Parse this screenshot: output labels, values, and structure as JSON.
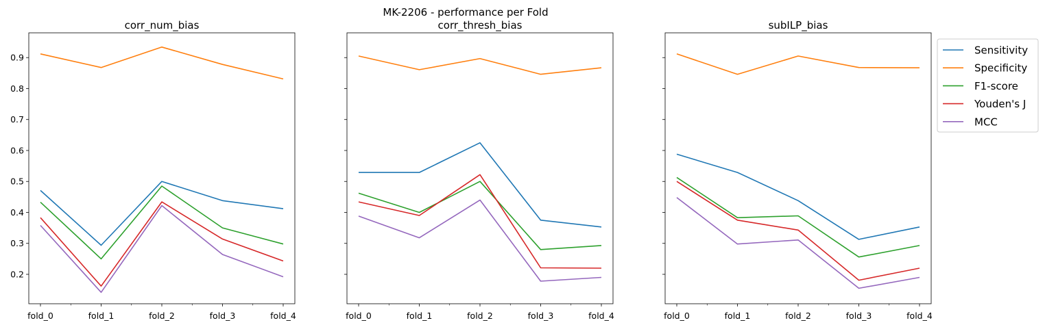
{
  "suptitle": "MK-2206 - performance per Fold",
  "chart_data": [
    {
      "type": "line",
      "title": "corr_num_bias",
      "categories": [
        "fold_0",
        "fold_1",
        "fold_2",
        "fold_3",
        "fold_4"
      ],
      "ylim": [
        0.105,
        0.98
      ],
      "yticks": [
        0.2,
        0.3,
        0.4,
        0.5,
        0.6,
        0.7,
        0.8,
        0.9
      ],
      "series": [
        {
          "name": "Sensitivity",
          "values": [
            0.471,
            0.294,
            0.5,
            0.438,
            0.412
          ]
        },
        {
          "name": "Specificity",
          "values": [
            0.912,
            0.868,
            0.934,
            0.878,
            0.831
          ]
        },
        {
          "name": "F1-score",
          "values": [
            0.433,
            0.25,
            0.485,
            0.35,
            0.298
          ]
        },
        {
          "name": "Youden's J",
          "values": [
            0.383,
            0.162,
            0.434,
            0.314,
            0.243
          ]
        },
        {
          "name": "MCC",
          "values": [
            0.358,
            0.142,
            0.422,
            0.264,
            0.192
          ]
        }
      ]
    },
    {
      "type": "line",
      "title": "corr_thresh_bias",
      "categories": [
        "fold_0",
        "fold_1",
        "fold_2",
        "fold_3",
        "fold_4"
      ],
      "ylim": [
        0.105,
        0.98
      ],
      "yticks": [
        0.2,
        0.3,
        0.4,
        0.5,
        0.6,
        0.7,
        0.8,
        0.9
      ],
      "series": [
        {
          "name": "Sensitivity",
          "values": [
            0.529,
            0.529,
            0.625,
            0.375,
            0.353
          ]
        },
        {
          "name": "Specificity",
          "values": [
            0.905,
            0.861,
            0.897,
            0.846,
            0.867
          ]
        },
        {
          "name": "F1-score",
          "values": [
            0.462,
            0.4,
            0.5,
            0.28,
            0.293
          ]
        },
        {
          "name": "Youden's J",
          "values": [
            0.434,
            0.39,
            0.522,
            0.221,
            0.22
          ]
        },
        {
          "name": "MCC",
          "values": [
            0.388,
            0.318,
            0.44,
            0.178,
            0.19
          ]
        }
      ]
    },
    {
      "type": "line",
      "title": "subILP_bias",
      "categories": [
        "fold_0",
        "fold_1",
        "fold_2",
        "fold_3",
        "fold_4"
      ],
      "ylim": [
        0.105,
        0.98
      ],
      "yticks": [
        0.2,
        0.3,
        0.4,
        0.5,
        0.6,
        0.7,
        0.8,
        0.9
      ],
      "series": [
        {
          "name": "Sensitivity",
          "values": [
            0.588,
            0.529,
            0.438,
            0.313,
            0.353
          ]
        },
        {
          "name": "Specificity",
          "values": [
            0.912,
            0.846,
            0.905,
            0.868,
            0.867
          ]
        },
        {
          "name": "F1-score",
          "values": [
            0.513,
            0.383,
            0.389,
            0.256,
            0.293
          ]
        },
        {
          "name": "Youden's J",
          "values": [
            0.5,
            0.375,
            0.343,
            0.181,
            0.22
          ]
        },
        {
          "name": "MCC",
          "values": [
            0.448,
            0.298,
            0.311,
            0.155,
            0.19
          ]
        }
      ]
    }
  ],
  "legend": {
    "placement": "outside-right",
    "entries": [
      "Sensitivity",
      "Specificity",
      "F1-score",
      "Youden's J",
      "MCC"
    ]
  },
  "colors": {
    "Sensitivity": "#1f77b4",
    "Specificity": "#ff7f0e",
    "F1-score": "#2ca02c",
    "Youden's J": "#d62728",
    "MCC": "#9467bd"
  }
}
